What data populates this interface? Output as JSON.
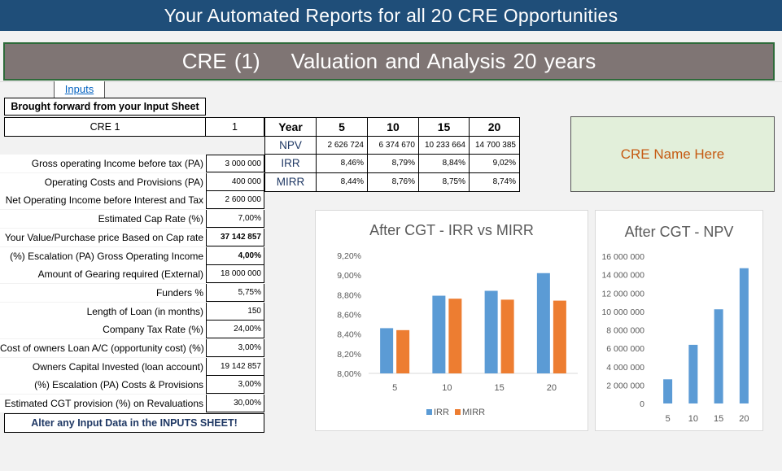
{
  "banner": {
    "title": "Your  Automated Reports for all 20 CRE Opportunities"
  },
  "title_bar": {
    "part1": "CRE (1)",
    "part2": "Valuation and Analysis 20 years"
  },
  "inputs_link": "Inputs",
  "left_table": {
    "header": "Brought forward from your Input Sheet",
    "cre_label": "CRE 1",
    "cre_number": "1",
    "rows": [
      {
        "label": "Gross operating Income before tax (PA)",
        "value": "3 000 000"
      },
      {
        "label": "Operating Costs and Provisions (PA)",
        "value": "400 000"
      },
      {
        "label": "Net Operating Income before Interest and Tax",
        "value": "2 600 000"
      },
      {
        "label": "Estimated Cap Rate (%)",
        "value": "7,00%"
      },
      {
        "label": "Your Value/Purchase price  Based on Cap rate",
        "value": "37 142 857"
      },
      {
        "label": "(%) Escalation (PA) Gross Operating Income",
        "value": "4,00%"
      },
      {
        "label": "Amount of Gearing required (External)",
        "value": "18 000 000"
      },
      {
        "label": "Funders %",
        "value": "5,75%"
      },
      {
        "label": "Length of Loan (in months)",
        "value": "150"
      },
      {
        "label": "Company Tax Rate (%)",
        "value": "24,00%"
      },
      {
        "label": "Cost of owners Loan A/C (opportunity cost) (%)",
        "value": "3,00%"
      },
      {
        "label": "Owners Capital Invested (loan account)",
        "value": "19 142 857"
      },
      {
        "label": "(%) Escalation (PA) Costs & Provisions",
        "value": "3,00%"
      },
      {
        "label": "Estimated CGT provision (%) on Revaluations",
        "value": "30,00%"
      }
    ],
    "footer": "Alter any Input Data in the INPUTS SHEET!"
  },
  "metrics": {
    "header_label": "Year",
    "years": [
      "5",
      "10",
      "15",
      "20"
    ],
    "rows": [
      {
        "label": "NPV",
        "values": [
          "2 626 724",
          "6 374 670",
          "10 233 664",
          "14 700 385"
        ]
      },
      {
        "label": "IRR",
        "values": [
          "8,46%",
          "8,79%",
          "8,84%",
          "9,02%"
        ]
      },
      {
        "label": "MIRR",
        "values": [
          "8,44%",
          "8,76%",
          "8,75%",
          "8,74%"
        ]
      }
    ]
  },
  "name_box": "CRE Name Here",
  "colors": {
    "banner": "#1f4e79",
    "title_bar": "#7f7574",
    "irr": "#5b9bd5",
    "mirr": "#ed7d31",
    "npv": "#5b9bd5",
    "name_text": "#c55a11",
    "name_bg": "#e2efda"
  },
  "chart_data": [
    {
      "type": "bar",
      "title": "After CGT - IRR vs MIRR",
      "categories": [
        "5",
        "10",
        "15",
        "20"
      ],
      "series": [
        {
          "name": "IRR",
          "values": [
            8.46,
            8.79,
            8.84,
            9.02
          ]
        },
        {
          "name": "MIRR",
          "values": [
            8.44,
            8.76,
            8.75,
            8.74
          ]
        }
      ],
      "ylim": [
        8.0,
        9.2
      ],
      "yticks": [
        "8,00%",
        "8,20%",
        "8,40%",
        "8,60%",
        "8,80%",
        "9,00%",
        "9,20%"
      ],
      "grid": false,
      "legend": "bottom"
    },
    {
      "type": "bar",
      "title": "After CGT - NPV",
      "categories": [
        "5",
        "10",
        "15",
        "20"
      ],
      "series": [
        {
          "values": [
            2626724,
            6374670,
            10233664,
            14700385
          ]
        }
      ],
      "ylim": [
        0,
        16000000
      ],
      "yticks": [
        "0",
        "2 000 000",
        "4 000 000",
        "6 000 000",
        "8 000 000",
        "10 000 000",
        "12 000 000",
        "14 000 000",
        "16 000 000"
      ],
      "grid": false
    }
  ]
}
